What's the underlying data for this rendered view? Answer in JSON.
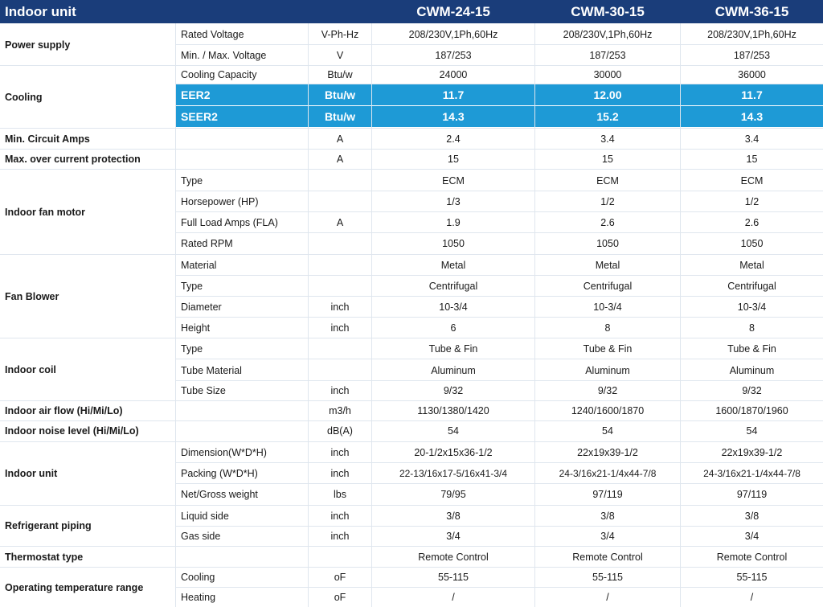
{
  "header": {
    "title": "Indoor unit",
    "models": [
      "CWM-24-15",
      "CWM-30-15",
      "CWM-36-15"
    ]
  },
  "colors": {
    "header_bg": "#1a3d7a",
    "highlight_bg": "#1e9ad6",
    "divider": "#dfe6ee"
  },
  "categories": [
    {
      "label": "Power supply"
    },
    {
      "label": "Cooling"
    },
    {
      "label": "Min. Circuit Amps"
    },
    {
      "label": "Max. over current protection"
    },
    {
      "label": "Indoor fan motor"
    },
    {
      "label": "Fan Blower"
    },
    {
      "label": "Indoor coil"
    },
    {
      "label": "Indoor air flow (Hi/Mi/Lo)"
    },
    {
      "label": "Indoor noise level (Hi/Mi/Lo)"
    },
    {
      "label": "Indoor unit"
    },
    {
      "label": "Refrigerant piping"
    },
    {
      "label": "Thermostat type"
    },
    {
      "label": "Operating temperature range"
    }
  ],
  "rows": [
    {
      "param": "Rated Voltage",
      "unit": "V-Ph-Hz",
      "v1": "208/230V,1Ph,60Hz",
      "v2": "208/230V,1Ph,60Hz",
      "v3": "208/230V,1Ph,60Hz"
    },
    {
      "param": "Min. / Max. Voltage",
      "unit": "V",
      "v1": "187/253",
      "v2": "187/253",
      "v3": "187/253"
    },
    {
      "param": "Cooling Capacity",
      "unit": "Btu/w",
      "v1": "24000",
      "v2": "30000",
      "v3": "36000"
    },
    {
      "param": "EER2",
      "unit": "Btu/w",
      "v1": "11.7",
      "v2": "12.00",
      "v3": "11.7"
    },
    {
      "param": "SEER2",
      "unit": "Btu/w",
      "v1": "14.3",
      "v2": "15.2",
      "v3": "14.3"
    },
    {
      "param": "",
      "unit": "A",
      "v1": "2.4",
      "v2": "3.4",
      "v3": "3.4"
    },
    {
      "param": "",
      "unit": "A",
      "v1": "15",
      "v2": "15",
      "v3": "15"
    },
    {
      "param": "Type",
      "unit": "",
      "v1": "ECM",
      "v2": "ECM",
      "v3": "ECM"
    },
    {
      "param": "Horsepower (HP)",
      "unit": "",
      "v1": "1/3",
      "v2": "1/2",
      "v3": "1/2"
    },
    {
      "param": "Full Load Amps (FLA)",
      "unit": "A",
      "v1": "1.9",
      "v2": "2.6",
      "v3": "2.6"
    },
    {
      "param": "Rated RPM",
      "unit": "",
      "v1": "1050",
      "v2": "1050",
      "v3": "1050"
    },
    {
      "param": "Material",
      "unit": "",
      "v1": "Metal",
      "v2": "Metal",
      "v3": "Metal"
    },
    {
      "param": "Type",
      "unit": "",
      "v1": "Centrifugal",
      "v2": "Centrifugal",
      "v3": "Centrifugal"
    },
    {
      "param": "Diameter",
      "unit": "inch",
      "v1": "10-3/4",
      "v2": "10-3/4",
      "v3": "10-3/4"
    },
    {
      "param": "Height",
      "unit": "inch",
      "v1": "6",
      "v2": "8",
      "v3": "8"
    },
    {
      "param": "Type",
      "unit": "",
      "v1": "Tube & Fin",
      "v2": "Tube & Fin",
      "v3": "Tube & Fin"
    },
    {
      "param": "Tube Material",
      "unit": "",
      "v1": "Aluminum",
      "v2": "Aluminum",
      "v3": "Aluminum"
    },
    {
      "param": "Tube Size",
      "unit": "inch",
      "v1": "9/32",
      "v2": "9/32",
      "v3": "9/32"
    },
    {
      "param": "",
      "unit": "m3/h",
      "v1": "1130/1380/1420",
      "v2": "1240/1600/1870",
      "v3": "1600/1870/1960"
    },
    {
      "param": "",
      "unit": "dB(A)",
      "v1": "54",
      "v2": "54",
      "v3": "54"
    },
    {
      "param": "Dimension(W*D*H)",
      "unit": "inch",
      "v1": "20-1/2x15x36-1/2",
      "v2": "22x19x39-1/2",
      "v3": "22x19x39-1/2"
    },
    {
      "param": "Packing   (W*D*H)",
      "unit": "inch",
      "v1": "22-13/16x17-5/16x41-3/4",
      "v2": "24-3/16x21-1/4x44-7/8",
      "v3": "24-3/16x21-1/4x44-7/8"
    },
    {
      "param": "Net/Gross weight",
      "unit": "lbs",
      "v1": "79/95",
      "v2": "97/119",
      "v3": "97/119"
    },
    {
      "param": "Liquid side",
      "unit": "inch",
      "v1": "3/8",
      "v2": "3/8",
      "v3": "3/8"
    },
    {
      "param": "Gas side",
      "unit": "inch",
      "v1": "3/4",
      "v2": "3/4",
      "v3": "3/4"
    },
    {
      "param": "",
      "unit": "",
      "v1": "Remote Control",
      "v2": "Remote Control",
      "v3": "Remote Control"
    },
    {
      "param": "Cooling",
      "unit": "oF",
      "v1": "55-115",
      "v2": "55-115",
      "v3": "55-115"
    },
    {
      "param": "Heating",
      "unit": "oF",
      "v1": "/",
      "v2": "/",
      "v3": "/"
    }
  ]
}
